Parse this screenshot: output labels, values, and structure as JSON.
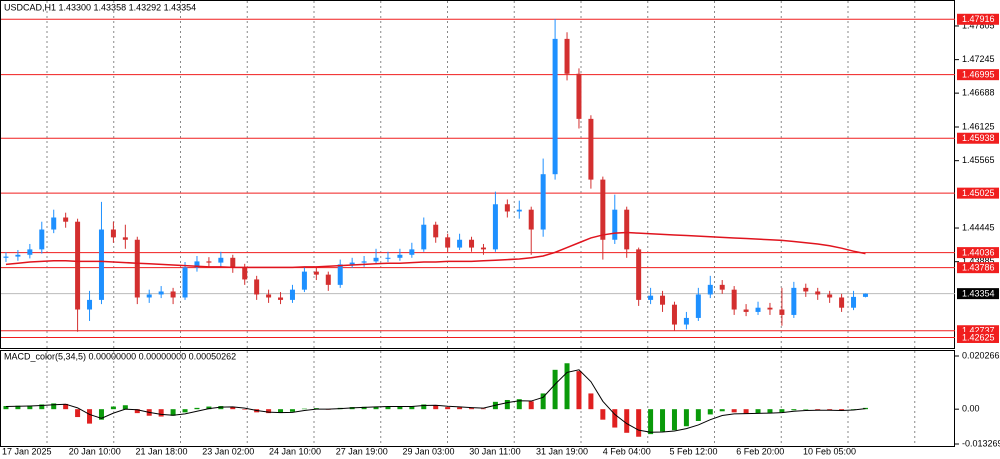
{
  "chart_data": [
    {
      "type": "candlestick",
      "title": "USDCAD,H1  1.43300 1.43358 1.43292 1.43354",
      "open": [
        1.4395,
        1.4397,
        1.44,
        1.4409,
        1.4442,
        1.4462,
        1.4455,
        1.4309,
        1.4325,
        1.4442,
        1.4429,
        1.4425,
        1.4329,
        1.4334,
        1.4339,
        1.4329,
        1.4379,
        1.4389,
        1.4387,
        1.4395,
        1.4379,
        1.4359,
        1.4334,
        1.4329,
        1.4325,
        1.4342,
        1.4372,
        1.4367,
        1.435,
        1.4384,
        1.4387,
        1.4389,
        1.4395,
        1.4395,
        1.44,
        1.4409,
        1.445,
        1.4429,
        1.4412,
        1.4425,
        1.4412,
        1.4409,
        1.4484,
        1.4472,
        1.4475,
        1.4442,
        1.4534,
        1.4759,
        1.4701,
        1.4626,
        1.4525,
        1.4425,
        1.4475,
        1.4409,
        1.4325,
        1.4332,
        1.4317,
        1.4284,
        1.4295,
        1.4334,
        1.435,
        1.4342,
        1.4309,
        1.4305,
        1.4312,
        1.4309,
        1.43,
        1.4345,
        1.4339,
        1.4334,
        1.4329,
        1.4312,
        1.433
      ],
      "high": [
        1.4404,
        1.4408,
        1.4418,
        1.4455,
        1.4475,
        1.447,
        1.446,
        1.434,
        1.4488,
        1.4455,
        1.445,
        1.443,
        1.4342,
        1.4348,
        1.4345,
        1.4388,
        1.4398,
        1.4396,
        1.4405,
        1.44,
        1.4385,
        1.4365,
        1.4342,
        1.4338,
        1.435,
        1.438,
        1.4378,
        1.4372,
        1.4392,
        1.4395,
        1.4398,
        1.441,
        1.4405,
        1.441,
        1.442,
        1.4462,
        1.4455,
        1.4435,
        1.4435,
        1.443,
        1.4418,
        1.4505,
        1.4492,
        1.449,
        1.448,
        1.456,
        1.4792,
        1.477,
        1.471,
        1.4632,
        1.453,
        1.45,
        1.448,
        1.4412,
        1.4345,
        1.434,
        1.4322,
        1.4305,
        1.4345,
        1.4365,
        1.4358,
        1.4348,
        1.4318,
        1.4322,
        1.432,
        1.4345,
        1.4355,
        1.4352,
        1.4345,
        1.434,
        1.4335,
        1.434,
        1.43358
      ],
      "low": [
        1.4388,
        1.439,
        1.4394,
        1.4402,
        1.4436,
        1.4445,
        1.4272,
        1.429,
        1.4318,
        1.442,
        1.441,
        1.4318,
        1.432,
        1.4328,
        1.4318,
        1.4325,
        1.4372,
        1.438,
        1.438,
        1.437,
        1.435,
        1.4325,
        1.432,
        1.4318,
        1.432,
        1.4338,
        1.4358,
        1.434,
        1.4345,
        1.4378,
        1.438,
        1.4384,
        1.4388,
        1.439,
        1.4395,
        1.4405,
        1.442,
        1.4405,
        1.4408,
        1.4405,
        1.44,
        1.4405,
        1.4462,
        1.446,
        1.44,
        1.443,
        1.4525,
        1.469,
        1.461,
        1.451,
        1.4392,
        1.4418,
        1.4395,
        1.4315,
        1.4318,
        1.4305,
        1.4274,
        1.4276,
        1.429,
        1.4328,
        1.4335,
        1.43,
        1.4298,
        1.43,
        1.43,
        1.4282,
        1.4295,
        1.433,
        1.4325,
        1.432,
        1.4305,
        1.4308,
        1.43292
      ],
      "close": [
        1.4397,
        1.44,
        1.4409,
        1.4442,
        1.4462,
        1.4455,
        1.4309,
        1.4325,
        1.4442,
        1.4429,
        1.4425,
        1.4329,
        1.4334,
        1.4339,
        1.4329,
        1.4379,
        1.4389,
        1.4387,
        1.4395,
        1.4379,
        1.4359,
        1.4334,
        1.4329,
        1.4325,
        1.4342,
        1.4372,
        1.4367,
        1.435,
        1.4384,
        1.4387,
        1.4389,
        1.4395,
        1.4395,
        1.44,
        1.4409,
        1.445,
        1.4429,
        1.4412,
        1.4425,
        1.4412,
        1.4409,
        1.4484,
        1.4472,
        1.4475,
        1.4442,
        1.4534,
        1.4759,
        1.4701,
        1.4626,
        1.4525,
        1.4425,
        1.4475,
        1.4409,
        1.4325,
        1.4332,
        1.4317,
        1.4284,
        1.4295,
        1.4334,
        1.435,
        1.4342,
        1.4309,
        1.4305,
        1.4312,
        1.4309,
        1.43,
        1.4345,
        1.4339,
        1.4334,
        1.4329,
        1.4312,
        1.433,
        1.43354
      ],
      "up_color": "#1e90ff",
      "down_color": "#d32f2f",
      "ma": {
        "color": "#e0141e",
        "values": [
          1.4384,
          1.4386,
          1.4388,
          1.4389,
          1.439,
          1.439,
          1.4389,
          1.4389,
          1.4389,
          1.4388,
          1.4387,
          1.4386,
          1.4385,
          1.4384,
          1.4383,
          1.4382,
          1.4381,
          1.438,
          1.438,
          1.4379,
          1.4379,
          1.4379,
          1.4379,
          1.4379,
          1.4379,
          1.438,
          1.438,
          1.4381,
          1.4382,
          1.4383,
          1.4384,
          1.4385,
          1.4386,
          1.4386,
          1.4387,
          1.4388,
          1.4388,
          1.4389,
          1.4389,
          1.4389,
          1.439,
          1.4391,
          1.4392,
          1.4393,
          1.4395,
          1.4398,
          1.4404,
          1.4412,
          1.442,
          1.4428,
          1.4433,
          1.4436,
          1.4437,
          1.4436,
          1.4435,
          1.4434,
          1.4433,
          1.4432,
          1.4431,
          1.443,
          1.4429,
          1.4428,
          1.4427,
          1.4426,
          1.4425,
          1.4424,
          1.4422,
          1.442,
          1.4418,
          1.4415,
          1.4411,
          1.4406,
          1.4402
        ]
      },
      "levels": [
        1.47916,
        1.46995,
        1.45938,
        1.45025,
        1.44036,
        1.43786,
        1.42737,
        1.42625
      ],
      "level_color": "#f01e1e",
      "last_price": 1.43354,
      "ylim": [
        1.4245,
        1.4822
      ],
      "yticks": [
        1.47805,
        1.47245,
        1.46688,
        1.46125,
        1.45565,
        1.44445,
        1.43885
      ],
      "xtick_labels": [
        "17 Jan 2025",
        "20 Jan 10:00",
        "21 Jan 18:00",
        "23 Jan 02:00",
        "24 Jan 10:00",
        "27 Jan 19:00",
        "29 Jan 03:00",
        "30 Jan 11:00",
        "31 Jan 19:00",
        "4 Feb 04:00",
        "5 Feb 12:00",
        "6 Feb 20:00",
        "10 Feb 05:00"
      ]
    },
    {
      "type": "macd",
      "title": "MACD_color(5,34,5) 0.00000000 0.00000000 0.00050262",
      "histogram": [
        0.0012,
        0.0013,
        0.0014,
        0.0018,
        0.0022,
        0.002,
        -0.003,
        -0.0055,
        -0.004,
        0.001,
        0.0015,
        -0.0015,
        -0.0025,
        -0.0028,
        -0.0025,
        -0.0012,
        0.0005,
        0.001,
        0.0012,
        0.0008,
        -0.0002,
        -0.0012,
        -0.0015,
        -0.0014,
        -0.001,
        0.0002,
        0.0004,
        -0.0002,
        0.0005,
        0.0008,
        0.0009,
        0.001,
        0.001,
        0.001,
        0.0011,
        0.0018,
        0.0015,
        0.0008,
        0.0007,
        0.0004,
        0.0002,
        0.0028,
        0.0035,
        0.0038,
        0.003,
        0.006,
        0.015,
        0.0175,
        0.0145,
        0.006,
        -0.004,
        -0.007,
        -0.009,
        -0.0105,
        -0.0095,
        -0.0085,
        -0.008,
        -0.0065,
        -0.0045,
        -0.002,
        -0.0008,
        -0.0012,
        -0.0016,
        -0.0015,
        -0.0014,
        -0.0012,
        -0.0004,
        -0.0002,
        -0.0003,
        -0.0004,
        -0.0006,
        -0.0001,
        0.0005
      ],
      "signal": [
        0.001,
        0.0011,
        0.0012,
        0.0014,
        0.0017,
        0.0019,
        0.0005,
        -0.002,
        -0.0035,
        -0.0015,
        0.0,
        -0.0002,
        -0.0012,
        -0.002,
        -0.0023,
        -0.0018,
        -0.0008,
        0.0002,
        0.0008,
        0.0009,
        0.0004,
        -0.0005,
        -0.0011,
        -0.0013,
        -0.0012,
        -0.0005,
        0.0,
        0.0,
        0.0002,
        0.0005,
        0.0007,
        0.0009,
        0.001,
        0.001,
        0.001,
        0.0014,
        0.0015,
        0.0011,
        0.0009,
        0.0006,
        0.0004,
        0.0015,
        0.0025,
        0.0032,
        0.0031,
        0.0045,
        0.0095,
        0.014,
        0.015,
        0.0105,
        0.003,
        -0.002,
        -0.0055,
        -0.008,
        -0.0088,
        -0.0087,
        -0.0083,
        -0.0074,
        -0.006,
        -0.004,
        -0.0024,
        -0.0018,
        -0.0017,
        -0.0016,
        -0.0015,
        -0.0013,
        -0.0008,
        -0.0005,
        -0.0004,
        -0.0004,
        -0.0005,
        -0.0003,
        0.0002
      ],
      "up_color": "#0a9a0a",
      "down_color": "#e02020",
      "signal_color": "#000000",
      "ylim": [
        -0.0132691,
        0.0202662
      ],
      "yticks": [
        0.0202662,
        {
          "value": 0,
          "label": "0.00"
        },
        -0.0132691
      ]
    }
  ]
}
